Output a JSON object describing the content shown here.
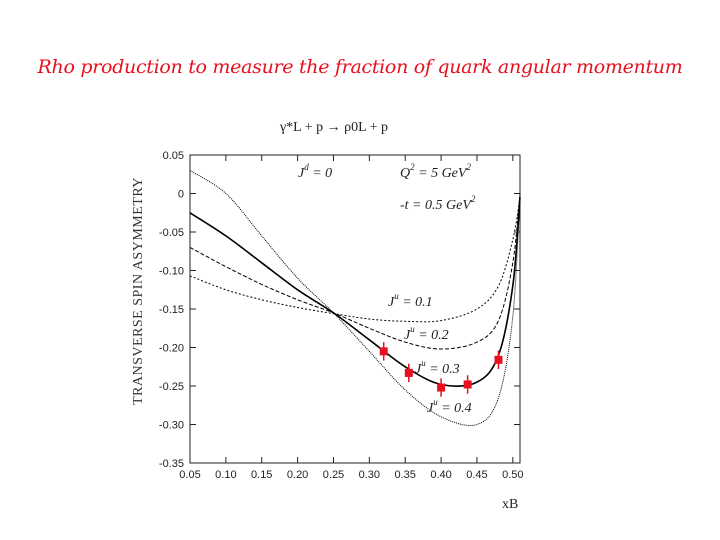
{
  "title": "Rho production to measure the fraction of quark angular momentum",
  "colors": {
    "title": "#e8101e",
    "points": "#e8101e",
    "curve": "#000000"
  },
  "chart_data": {
    "type": "line",
    "reaction": "γ*L + p → ρ0L + p",
    "xlabel": "xB",
    "ylabel": "TRANSVERSE SPIN ASYMMETRY",
    "xlim": [
      0.05,
      0.51
    ],
    "ylim": [
      -0.35,
      0.05
    ],
    "xticks": [
      "0.05",
      "0.10",
      "0.15",
      "0.20",
      "0.25",
      "0.30",
      "0.35",
      "0.40",
      "0.45",
      "0.50"
    ],
    "yticks": [
      "0.05",
      "0",
      "-0.05",
      "-0.10",
      "-0.15",
      "-0.20",
      "-0.25",
      "-0.30",
      "-0.35"
    ],
    "annotations": [
      {
        "text": "J",
        "sup": "d",
        "rest": " = 0"
      },
      {
        "text": "Q",
        "sup": "2",
        "rest": " = 5 GeV",
        "sup2": "2"
      },
      {
        "text": "-t = 0.5 GeV",
        "sup": "2",
        "rest": ""
      }
    ],
    "series": [
      {
        "name": "J^u = 0.1",
        "label": "J",
        "label_sup": "u",
        "label_rest": " = 0.1",
        "dash": "2,2",
        "x": [
          0.05,
          0.1,
          0.15,
          0.2,
          0.25,
          0.3,
          0.35,
          0.4,
          0.45,
          0.48,
          0.5,
          0.51
        ],
        "y": [
          -0.107,
          -0.125,
          -0.138,
          -0.148,
          -0.156,
          -0.163,
          -0.166,
          -0.165,
          -0.15,
          -0.12,
          -0.06,
          -0.005
        ]
      },
      {
        "name": "J^u = 0.2",
        "label": "J",
        "label_sup": "u",
        "label_rest": " = 0.2",
        "dash": "4,2",
        "x": [
          0.05,
          0.1,
          0.15,
          0.2,
          0.25,
          0.3,
          0.35,
          0.4,
          0.45,
          0.48,
          0.5,
          0.51
        ],
        "y": [
          -0.07,
          -0.095,
          -0.118,
          -0.138,
          -0.155,
          -0.175,
          -0.193,
          -0.202,
          -0.193,
          -0.165,
          -0.09,
          0.0
        ]
      },
      {
        "name": "J^u = 0.3",
        "label": "J",
        "label_sup": "u",
        "label_rest": " = 0.3",
        "dash": "",
        "x": [
          0.05,
          0.1,
          0.15,
          0.2,
          0.25,
          0.3,
          0.35,
          0.4,
          0.45,
          0.48,
          0.5,
          0.51
        ],
        "y": [
          -0.025,
          -0.055,
          -0.09,
          -0.125,
          -0.155,
          -0.19,
          -0.225,
          -0.248,
          -0.245,
          -0.21,
          -0.12,
          -0.005
        ]
      },
      {
        "name": "J^u = 0.4",
        "label": "J",
        "label_sup": "u",
        "label_rest": " = 0.4",
        "dash": "1,1",
        "x": [
          0.05,
          0.1,
          0.15,
          0.2,
          0.25,
          0.3,
          0.35,
          0.4,
          0.45,
          0.48,
          0.5,
          0.51
        ],
        "y": [
          0.03,
          0.0,
          -0.055,
          -0.11,
          -0.155,
          -0.205,
          -0.255,
          -0.29,
          -0.3,
          -0.265,
          -0.16,
          0.0
        ]
      }
    ],
    "points": {
      "x": [
        0.32,
        0.355,
        0.4,
        0.437,
        0.48
      ],
      "y": [
        -0.205,
        -0.233,
        -0.252,
        -0.248,
        -0.216
      ],
      "err": [
        0.012,
        0.012,
        0.012,
        0.012,
        0.012
      ]
    }
  }
}
